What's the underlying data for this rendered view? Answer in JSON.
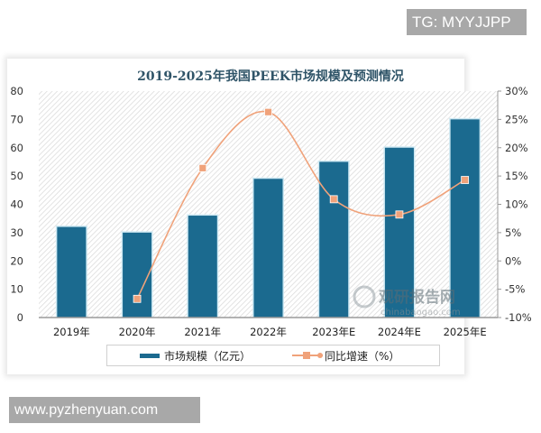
{
  "badges": {
    "top_right": "TG: MYYJJPP",
    "bottom_left": "www.pyzhenyuan.com"
  },
  "watermark": {
    "name": "观研报告网",
    "domain": "chinabaogao.com"
  },
  "colors": {
    "bar": "#1b6a8f",
    "line": "#f0a27a",
    "title": "#2f5468"
  },
  "chart_data": {
    "type": "bar",
    "title": "2019-2025年我国PEEK市场规模及预测情况",
    "categories": [
      "2019年",
      "2020年",
      "2021年",
      "2022年",
      "2023年E",
      "2024年E",
      "2025年E"
    ],
    "series": [
      {
        "name": "市场规模（亿元）",
        "type": "bar",
        "axis": "left",
        "values": [
          32,
          30,
          36,
          49,
          55,
          60,
          70
        ]
      },
      {
        "name": "同比增速（%）",
        "type": "line",
        "axis": "right",
        "smooth": true,
        "values": [
          null,
          -6.7,
          16.4,
          26.3,
          10.9,
          8.2,
          14.3
        ]
      }
    ],
    "left_axis": {
      "ylim": [
        0,
        80
      ],
      "ticks": [
        "0",
        "10",
        "20",
        "30",
        "40",
        "50",
        "60",
        "70",
        "80"
      ]
    },
    "right_axis": {
      "ylim": [
        -10,
        30
      ],
      "ticks": [
        "-10%",
        "-5%",
        "0%",
        "5%",
        "10%",
        "15%",
        "20%",
        "25%",
        "30%"
      ]
    },
    "xlabel": "",
    "ylabel": "",
    "grid": false,
    "legend_position": "bottom"
  }
}
